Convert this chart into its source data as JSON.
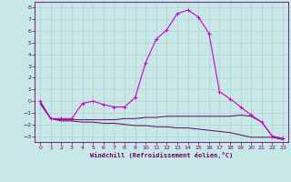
{
  "title": "",
  "xlabel": "Windchill (Refroidissement éolien,°C)",
  "ylabel": "",
  "xlim": [
    -0.5,
    23.5
  ],
  "ylim": [
    -3.5,
    8.5
  ],
  "yticks": [
    -3,
    -2,
    -1,
    0,
    1,
    2,
    3,
    4,
    5,
    6,
    7,
    8
  ],
  "xticks": [
    0,
    1,
    2,
    3,
    4,
    5,
    6,
    7,
    8,
    9,
    10,
    11,
    12,
    13,
    14,
    15,
    16,
    17,
    18,
    19,
    20,
    21,
    22,
    23
  ],
  "bg_color": "#c8e8e8",
  "grid_color": "#b0d0d0",
  "line_color": "#cc00cc",
  "line_color2": "#660066",
  "line1_x": [
    0,
    1,
    2,
    3,
    4,
    5,
    6,
    7,
    8,
    9,
    10,
    11,
    12,
    13,
    14,
    15,
    16,
    17,
    18,
    19,
    20,
    21,
    22,
    23
  ],
  "line1_y": [
    0.0,
    -1.5,
    -1.5,
    -1.5,
    -0.2,
    0.0,
    -0.3,
    -0.5,
    -0.5,
    0.3,
    3.3,
    5.3,
    6.1,
    7.5,
    7.8,
    7.2,
    5.8,
    0.8,
    0.2,
    -0.5,
    -1.2,
    -1.8,
    -3.0,
    -3.2
  ],
  "line2_x": [
    0,
    1,
    2,
    3,
    4,
    5,
    6,
    7,
    8,
    9,
    10,
    11,
    12,
    13,
    14,
    15,
    16,
    17,
    18,
    19,
    20,
    21,
    22,
    23
  ],
  "line2_y": [
    -0.2,
    -1.5,
    -1.6,
    -1.6,
    -1.6,
    -1.6,
    -1.6,
    -1.6,
    -1.5,
    -1.5,
    -1.4,
    -1.4,
    -1.3,
    -1.3,
    -1.3,
    -1.3,
    -1.3,
    -1.3,
    -1.3,
    -1.2,
    -1.3,
    -1.8,
    -3.0,
    -3.2
  ],
  "line3_x": [
    0,
    1,
    2,
    3,
    4,
    5,
    6,
    7,
    8,
    9,
    10,
    11,
    12,
    13,
    14,
    15,
    16,
    17,
    18,
    19,
    20,
    21,
    22,
    23
  ],
  "line3_y": [
    -0.2,
    -1.5,
    -1.7,
    -1.7,
    -1.8,
    -1.8,
    -1.9,
    -1.9,
    -2.0,
    -2.1,
    -2.1,
    -2.2,
    -2.2,
    -2.3,
    -2.3,
    -2.4,
    -2.5,
    -2.6,
    -2.7,
    -2.9,
    -3.1,
    -3.1,
    -3.1,
    -3.3
  ]
}
